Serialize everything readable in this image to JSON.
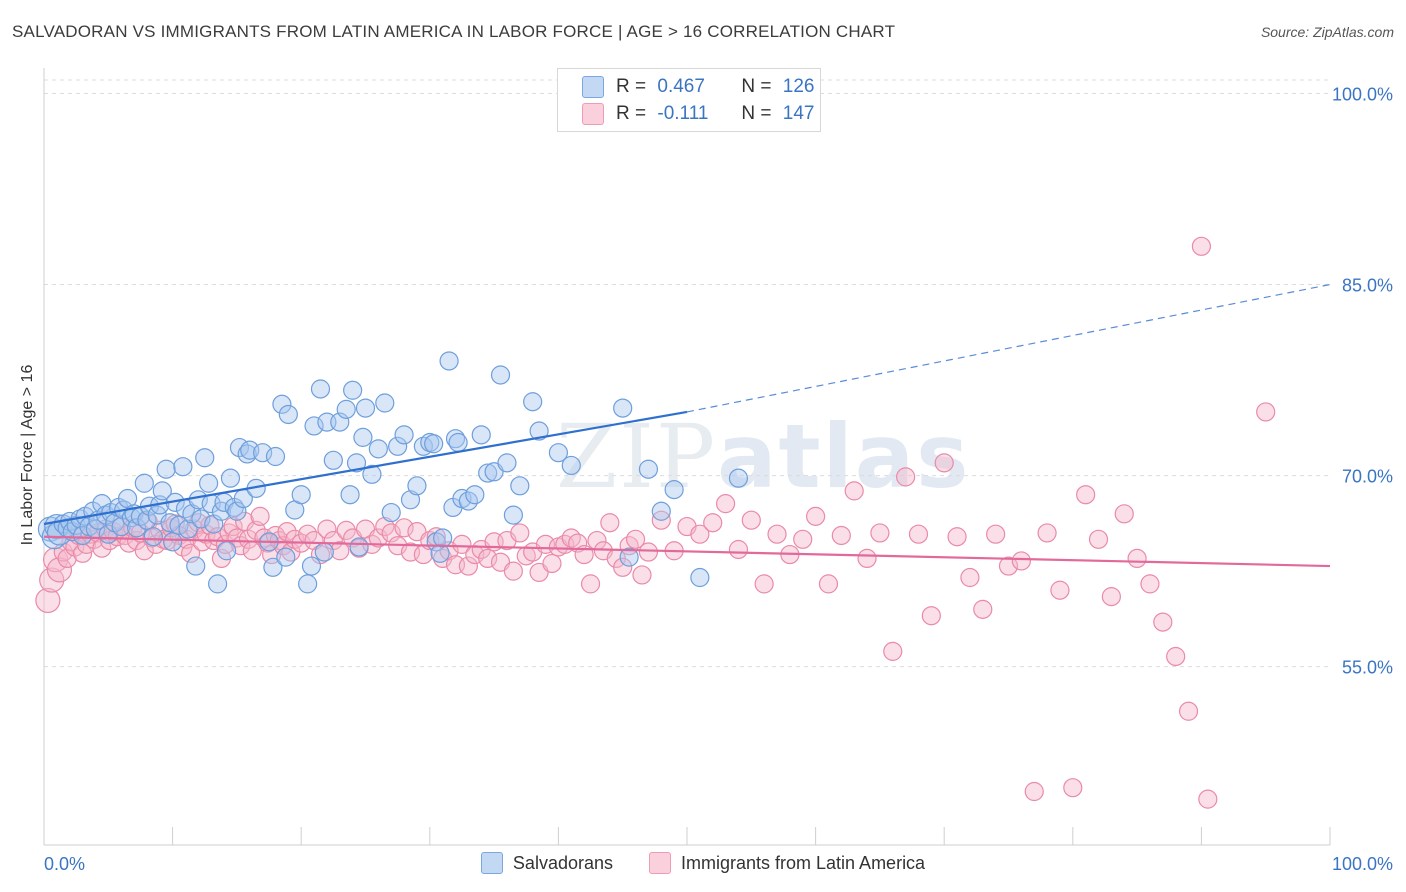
{
  "header": {
    "title": "SALVADORAN VS IMMIGRANTS FROM LATIN AMERICA IN LABOR FORCE | AGE > 16 CORRELATION CHART",
    "source": "Source: ZipAtlas.com"
  },
  "watermark": {
    "zip": "ZIP",
    "atlas": "atlas"
  },
  "legend": {
    "rows": [
      {
        "r_label": "R = ",
        "r_value": "0.467",
        "n_label": "N = ",
        "n_value": "126",
        "color": "#a9c8ef"
      },
      {
        "r_label": "R = ",
        "r_value": "-0.111",
        "n_label": "N = ",
        "n_value": "147",
        "color": "#f5b8cb"
      }
    ]
  },
  "chart_data": {
    "type": "scatter",
    "title": "SALVADORAN VS IMMIGRANTS FROM LATIN AMERICA IN LABOR FORCE | AGE > 16 CORRELATION CHART",
    "ylabel": "In Labor Force | Age > 16",
    "xlim": [
      0,
      100
    ],
    "ylim": [
      41.0,
      102.0
    ],
    "x_tick_labels": [
      "0.0%",
      "100.0%"
    ],
    "y_ticks": [
      55.0,
      70.0,
      85.0,
      100.0
    ],
    "y_tick_labels": [
      "55.0%",
      "70.0%",
      "85.0%",
      "100.0%"
    ],
    "grid": true,
    "legend_position": "top-center",
    "series": [
      {
        "name": "Salvadorans",
        "color": "#a9c8ef",
        "stroke": "#6e9fdc",
        "line_color": "#2f6fce",
        "trend": {
          "x0": 0,
          "y0": 66.2,
          "x1": 50,
          "y1": 75.0,
          "dash_to_x": 100,
          "dash_to_y": 85.0
        },
        "points": [
          [
            0.5,
            65.8
          ],
          [
            0.8,
            65.2
          ],
          [
            1.0,
            66.0
          ],
          [
            1.2,
            65.5
          ],
          [
            1.5,
            66.2
          ],
          [
            1.8,
            65.9
          ],
          [
            2.0,
            66.4
          ],
          [
            2.2,
            65.6
          ],
          [
            2.5,
            66.1
          ],
          [
            2.8,
            66.6
          ],
          [
            3.0,
            65.3
          ],
          [
            3.2,
            66.8
          ],
          [
            3.5,
            66.0
          ],
          [
            3.8,
            67.2
          ],
          [
            4.0,
            65.8
          ],
          [
            4.2,
            66.5
          ],
          [
            4.5,
            67.8
          ],
          [
            4.8,
            66.9
          ],
          [
            5.0,
            65.4
          ],
          [
            5.2,
            67.1
          ],
          [
            5.5,
            66.3
          ],
          [
            5.8,
            67.5
          ],
          [
            6.0,
            66.0
          ],
          [
            6.2,
            67.3
          ],
          [
            6.5,
            68.2
          ],
          [
            6.8,
            66.7
          ],
          [
            7.0,
            67.0
          ],
          [
            7.2,
            65.9
          ],
          [
            7.5,
            66.8
          ],
          [
            7.8,
            69.4
          ],
          [
            8.0,
            66.5
          ],
          [
            8.2,
            67.6
          ],
          [
            8.5,
            65.2
          ],
          [
            8.8,
            66.9
          ],
          [
            9.0,
            67.7
          ],
          [
            9.2,
            68.8
          ],
          [
            9.5,
            70.5
          ],
          [
            9.8,
            66.3
          ],
          [
            10.0,
            64.8
          ],
          [
            10.2,
            67.9
          ],
          [
            10.5,
            66.1
          ],
          [
            10.8,
            70.7
          ],
          [
            11.0,
            67.4
          ],
          [
            11.2,
            65.8
          ],
          [
            11.5,
            67.0
          ],
          [
            11.8,
            62.9
          ],
          [
            12.0,
            68.1
          ],
          [
            12.2,
            66.6
          ],
          [
            12.5,
            71.4
          ],
          [
            12.8,
            69.4
          ],
          [
            13.0,
            67.8
          ],
          [
            13.2,
            66.2
          ],
          [
            13.5,
            61.5
          ],
          [
            13.8,
            67.2
          ],
          [
            14.0,
            67.9
          ],
          [
            14.2,
            64.1
          ],
          [
            14.5,
            69.8
          ],
          [
            14.8,
            67.5
          ],
          [
            15.0,
            67.2
          ],
          [
            15.2,
            72.2
          ],
          [
            15.5,
            68.2
          ],
          [
            15.8,
            71.7
          ],
          [
            16.0,
            72.0
          ],
          [
            16.5,
            69.0
          ],
          [
            17.0,
            71.8
          ],
          [
            17.5,
            64.8
          ],
          [
            17.8,
            62.8
          ],
          [
            18.0,
            71.5
          ],
          [
            18.5,
            75.6
          ],
          [
            18.8,
            63.6
          ],
          [
            19.0,
            74.8
          ],
          [
            19.5,
            67.3
          ],
          [
            20.0,
            68.5
          ],
          [
            20.5,
            61.5
          ],
          [
            20.8,
            62.9
          ],
          [
            21.0,
            73.9
          ],
          [
            21.5,
            76.8
          ],
          [
            21.8,
            64.0
          ],
          [
            22.0,
            74.2
          ],
          [
            22.5,
            71.2
          ],
          [
            23.0,
            74.2
          ],
          [
            23.5,
            75.2
          ],
          [
            23.8,
            68.5
          ],
          [
            24.0,
            76.7
          ],
          [
            24.3,
            71.0
          ],
          [
            24.5,
            64.4
          ],
          [
            24.8,
            73.0
          ],
          [
            25.0,
            75.3
          ],
          [
            25.5,
            70.1
          ],
          [
            26.0,
            72.1
          ],
          [
            26.5,
            75.7
          ],
          [
            27.0,
            67.1
          ],
          [
            27.5,
            72.3
          ],
          [
            28.0,
            73.2
          ],
          [
            28.5,
            68.1
          ],
          [
            29.0,
            69.2
          ],
          [
            29.5,
            72.3
          ],
          [
            30.0,
            72.6
          ],
          [
            30.3,
            72.5
          ],
          [
            30.5,
            64.8
          ],
          [
            30.8,
            63.9
          ],
          [
            31.0,
            65.1
          ],
          [
            31.5,
            79.0
          ],
          [
            31.8,
            67.5
          ],
          [
            32.0,
            72.9
          ],
          [
            32.2,
            72.6
          ],
          [
            32.5,
            68.2
          ],
          [
            33.0,
            68.0
          ],
          [
            33.5,
            68.5
          ],
          [
            34.0,
            73.2
          ],
          [
            34.5,
            70.2
          ],
          [
            35.0,
            70.3
          ],
          [
            35.5,
            77.9
          ],
          [
            36.0,
            71.0
          ],
          [
            36.5,
            66.9
          ],
          [
            37.0,
            69.2
          ],
          [
            38.0,
            75.8
          ],
          [
            38.5,
            73.5
          ],
          [
            40.0,
            71.8
          ],
          [
            41.0,
            70.8
          ],
          [
            45.0,
            75.3
          ],
          [
            45.5,
            63.6
          ],
          [
            47.0,
            70.5
          ],
          [
            48.0,
            67.2
          ],
          [
            49.0,
            68.9
          ],
          [
            51.0,
            62.0
          ],
          [
            54.0,
            69.8
          ]
        ]
      },
      {
        "name": "Immigrants from Latin America",
        "color": "#f5b8cb",
        "stroke": "#ea8aa8",
        "line_color": "#e2699a",
        "trend": {
          "x0": 0,
          "y0": 65.2,
          "x1": 100,
          "y1": 62.9
        },
        "points": [
          [
            0.3,
            60.2
          ],
          [
            0.6,
            61.8
          ],
          [
            0.9,
            63.4
          ],
          [
            1.2,
            62.6
          ],
          [
            1.5,
            64.0
          ],
          [
            1.8,
            63.5
          ],
          [
            2.1,
            64.8
          ],
          [
            2.4,
            64.4
          ],
          [
            2.7,
            65.3
          ],
          [
            3.0,
            63.9
          ],
          [
            3.3,
            64.6
          ],
          [
            3.6,
            65.4
          ],
          [
            3.9,
            65.0
          ],
          [
            4.2,
            65.5
          ],
          [
            4.5,
            64.3
          ],
          [
            4.8,
            65.8
          ],
          [
            5.1,
            64.9
          ],
          [
            5.4,
            65.6
          ],
          [
            5.7,
            65.2
          ],
          [
            6.0,
            66.0
          ],
          [
            6.3,
            65.3
          ],
          [
            6.6,
            64.7
          ],
          [
            6.9,
            65.9
          ],
          [
            7.2,
            64.9
          ],
          [
            7.5,
            65.5
          ],
          [
            7.8,
            64.1
          ],
          [
            8.1,
            66.4
          ],
          [
            8.4,
            65.1
          ],
          [
            8.7,
            64.6
          ],
          [
            9.0,
            65.7
          ],
          [
            9.3,
            65.0
          ],
          [
            9.6,
            64.9
          ],
          [
            9.9,
            65.9
          ],
          [
            10.2,
            66.2
          ],
          [
            10.5,
            65.3
          ],
          [
            10.8,
            64.4
          ],
          [
            11.1,
            65.0
          ],
          [
            11.4,
            63.9
          ],
          [
            11.7,
            65.8
          ],
          [
            12.0,
            66.3
          ],
          [
            12.3,
            64.8
          ],
          [
            12.6,
            65.4
          ],
          [
            12.9,
            66.1
          ],
          [
            13.2,
            64.9
          ],
          [
            13.5,
            65.2
          ],
          [
            13.8,
            63.5
          ],
          [
            14.1,
            64.6
          ],
          [
            14.4,
            65.5
          ],
          [
            14.7,
            66.0
          ],
          [
            15.0,
            65.1
          ],
          [
            15.3,
            64.5
          ],
          [
            15.6,
            66.4
          ],
          [
            15.9,
            65.0
          ],
          [
            16.2,
            64.1
          ],
          [
            16.5,
            65.7
          ],
          [
            16.8,
            66.8
          ],
          [
            17.1,
            65.1
          ],
          [
            17.4,
            64.7
          ],
          [
            17.7,
            63.8
          ],
          [
            18.0,
            65.3
          ],
          [
            18.3,
            64.9
          ],
          [
            18.6,
            64.5
          ],
          [
            18.9,
            65.6
          ],
          [
            19.2,
            64.0
          ],
          [
            19.5,
            65.0
          ],
          [
            20.0,
            64.7
          ],
          [
            20.5,
            65.4
          ],
          [
            21.0,
            64.9
          ],
          [
            21.5,
            63.8
          ],
          [
            22.0,
            65.8
          ],
          [
            22.5,
            64.9
          ],
          [
            23.0,
            64.1
          ],
          [
            23.5,
            65.7
          ],
          [
            24.0,
            65.1
          ],
          [
            24.5,
            64.3
          ],
          [
            25.0,
            65.8
          ],
          [
            25.5,
            64.6
          ],
          [
            26.0,
            65.1
          ],
          [
            26.5,
            66.0
          ],
          [
            27.0,
            65.5
          ],
          [
            27.5,
            64.5
          ],
          [
            28.0,
            65.9
          ],
          [
            28.5,
            64.0
          ],
          [
            29.0,
            65.6
          ],
          [
            29.5,
            63.8
          ],
          [
            30.0,
            64.9
          ],
          [
            30.5,
            65.2
          ],
          [
            31.0,
            63.5
          ],
          [
            31.5,
            64.1
          ],
          [
            32.0,
            63.0
          ],
          [
            32.5,
            64.6
          ],
          [
            33.0,
            62.9
          ],
          [
            33.5,
            63.8
          ],
          [
            34.0,
            64.2
          ],
          [
            34.5,
            63.5
          ],
          [
            35.0,
            64.8
          ],
          [
            35.5,
            63.2
          ],
          [
            36.0,
            64.9
          ],
          [
            36.5,
            62.5
          ],
          [
            37.0,
            65.5
          ],
          [
            37.5,
            63.7
          ],
          [
            38.0,
            64.0
          ],
          [
            38.5,
            62.4
          ],
          [
            39.0,
            64.6
          ],
          [
            39.5,
            63.1
          ],
          [
            40.0,
            64.4
          ],
          [
            40.5,
            64.6
          ],
          [
            41.0,
            65.1
          ],
          [
            41.5,
            64.7
          ],
          [
            42.0,
            63.8
          ],
          [
            42.5,
            61.5
          ],
          [
            43.0,
            64.9
          ],
          [
            43.5,
            64.1
          ],
          [
            44.0,
            66.3
          ],
          [
            44.5,
            63.5
          ],
          [
            45.0,
            62.8
          ],
          [
            45.5,
            64.5
          ],
          [
            46.0,
            65.0
          ],
          [
            46.5,
            62.2
          ],
          [
            47.0,
            64.0
          ],
          [
            48.0,
            66.5
          ],
          [
            49.0,
            64.1
          ],
          [
            50.0,
            66.0
          ],
          [
            51.0,
            65.4
          ],
          [
            52.0,
            66.3
          ],
          [
            53.0,
            67.8
          ],
          [
            54.0,
            64.2
          ],
          [
            55.0,
            66.5
          ],
          [
            56.0,
            61.5
          ],
          [
            57.0,
            65.4
          ],
          [
            58.0,
            63.8
          ],
          [
            59.0,
            65.0
          ],
          [
            60.0,
            66.8
          ],
          [
            61.0,
            61.5
          ],
          [
            62.0,
            65.3
          ],
          [
            63.0,
            68.8
          ],
          [
            64.0,
            63.5
          ],
          [
            65.0,
            65.5
          ],
          [
            66.0,
            56.2
          ],
          [
            67.0,
            69.9
          ],
          [
            68.0,
            65.4
          ],
          [
            69.0,
            59.0
          ],
          [
            70.0,
            71.0
          ],
          [
            71.0,
            65.2
          ],
          [
            72.0,
            62.0
          ],
          [
            73.0,
            59.5
          ],
          [
            74.0,
            65.4
          ],
          [
            75.0,
            62.9
          ],
          [
            76.0,
            63.3
          ],
          [
            77.0,
            45.2
          ],
          [
            78.0,
            65.5
          ],
          [
            79.0,
            61.0
          ],
          [
            80.0,
            45.5
          ],
          [
            81.0,
            68.5
          ],
          [
            82.0,
            65.0
          ],
          [
            83.0,
            60.5
          ],
          [
            84.0,
            67.0
          ],
          [
            85.0,
            63.5
          ],
          [
            86.0,
            61.5
          ],
          [
            87.0,
            58.5
          ],
          [
            88.0,
            55.8
          ],
          [
            89.0,
            51.5
          ],
          [
            90.0,
            88.0
          ],
          [
            90.5,
            44.6
          ],
          [
            95.0,
            75.0
          ]
        ]
      }
    ]
  }
}
